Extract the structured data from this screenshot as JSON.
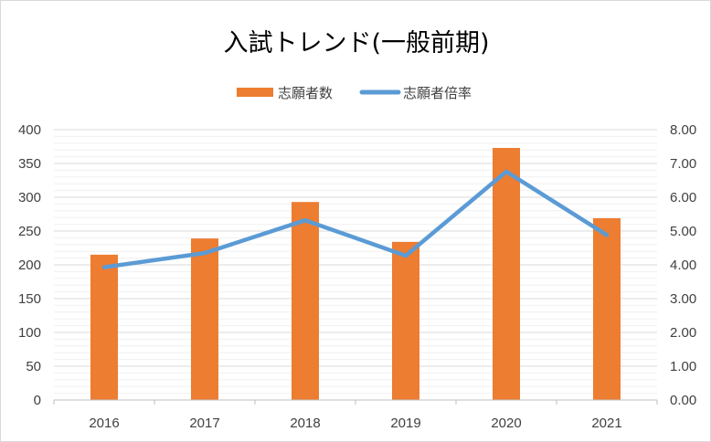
{
  "chart_data": {
    "type": "bar",
    "title": "入試トレンド(一般前期)",
    "categories": [
      "2016",
      "2017",
      "2018",
      "2019",
      "2020",
      "2021"
    ],
    "series": [
      {
        "name": "志願者数",
        "kind": "bar",
        "axis": "left",
        "color": "#ED7D31",
        "values": [
          215,
          239,
          293,
          234,
          373,
          269
        ]
      },
      {
        "name": "志願者倍率",
        "kind": "line",
        "axis": "right",
        "color": "#5B9BD5",
        "values": [
          3.93,
          4.35,
          5.32,
          4.27,
          6.76,
          4.88
        ]
      }
    ],
    "ylim_left": [
      0,
      400
    ],
    "yticks_left": [
      "0",
      "50",
      "100",
      "150",
      "200",
      "250",
      "300",
      "350",
      "400"
    ],
    "ylim_right": [
      0,
      8
    ],
    "yticks_right": [
      "0.00",
      "1.00",
      "2.00",
      "3.00",
      "4.00",
      "5.00",
      "6.00",
      "7.00",
      "8.00"
    ],
    "legend_position": "top",
    "grid": true
  }
}
